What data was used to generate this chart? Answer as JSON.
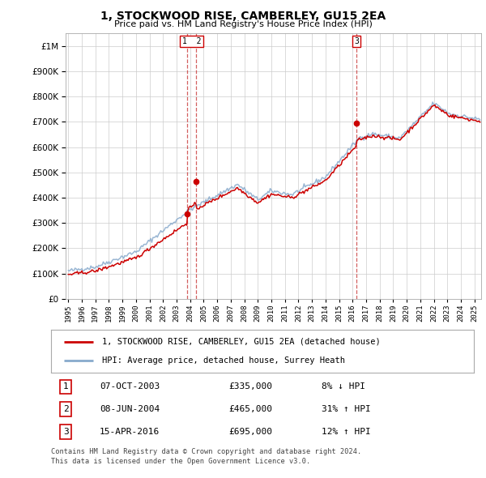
{
  "title": "1, STOCKWOOD RISE, CAMBERLEY, GU15 2EA",
  "subtitle": "Price paid vs. HM Land Registry's House Price Index (HPI)",
  "footer1": "Contains HM Land Registry data © Crown copyright and database right 2024.",
  "footer2": "This data is licensed under the Open Government Licence v3.0.",
  "legend_red": "1, STOCKWOOD RISE, CAMBERLEY, GU15 2EA (detached house)",
  "legend_blue": "HPI: Average price, detached house, Surrey Heath",
  "transactions": [
    {
      "num": "1",
      "date": "07-OCT-2003",
      "price": "£335,000",
      "change": "8% ↓ HPI"
    },
    {
      "num": "2",
      "date": "08-JUN-2004",
      "price": "£465,000",
      "change": "31% ↑ HPI"
    },
    {
      "num": "3",
      "date": "15-APR-2016",
      "price": "£695,000",
      "change": "12% ↑ HPI"
    }
  ],
  "sale1_x": 2003.77,
  "sale1_y": 335000,
  "sale2_x": 2004.44,
  "sale2_y": 465000,
  "sale3_x": 2016.29,
  "sale3_y": 695000,
  "ylim": [
    0,
    1050000
  ],
  "xlim_start": 1994.8,
  "xlim_end": 2025.5,
  "background_color": "#ffffff",
  "grid_color": "#cccccc",
  "red_line_color": "#cc0000",
  "blue_line_color": "#88aacc",
  "vline_color": "#cc4444",
  "title_fontsize": 10,
  "subtitle_fontsize": 8
}
